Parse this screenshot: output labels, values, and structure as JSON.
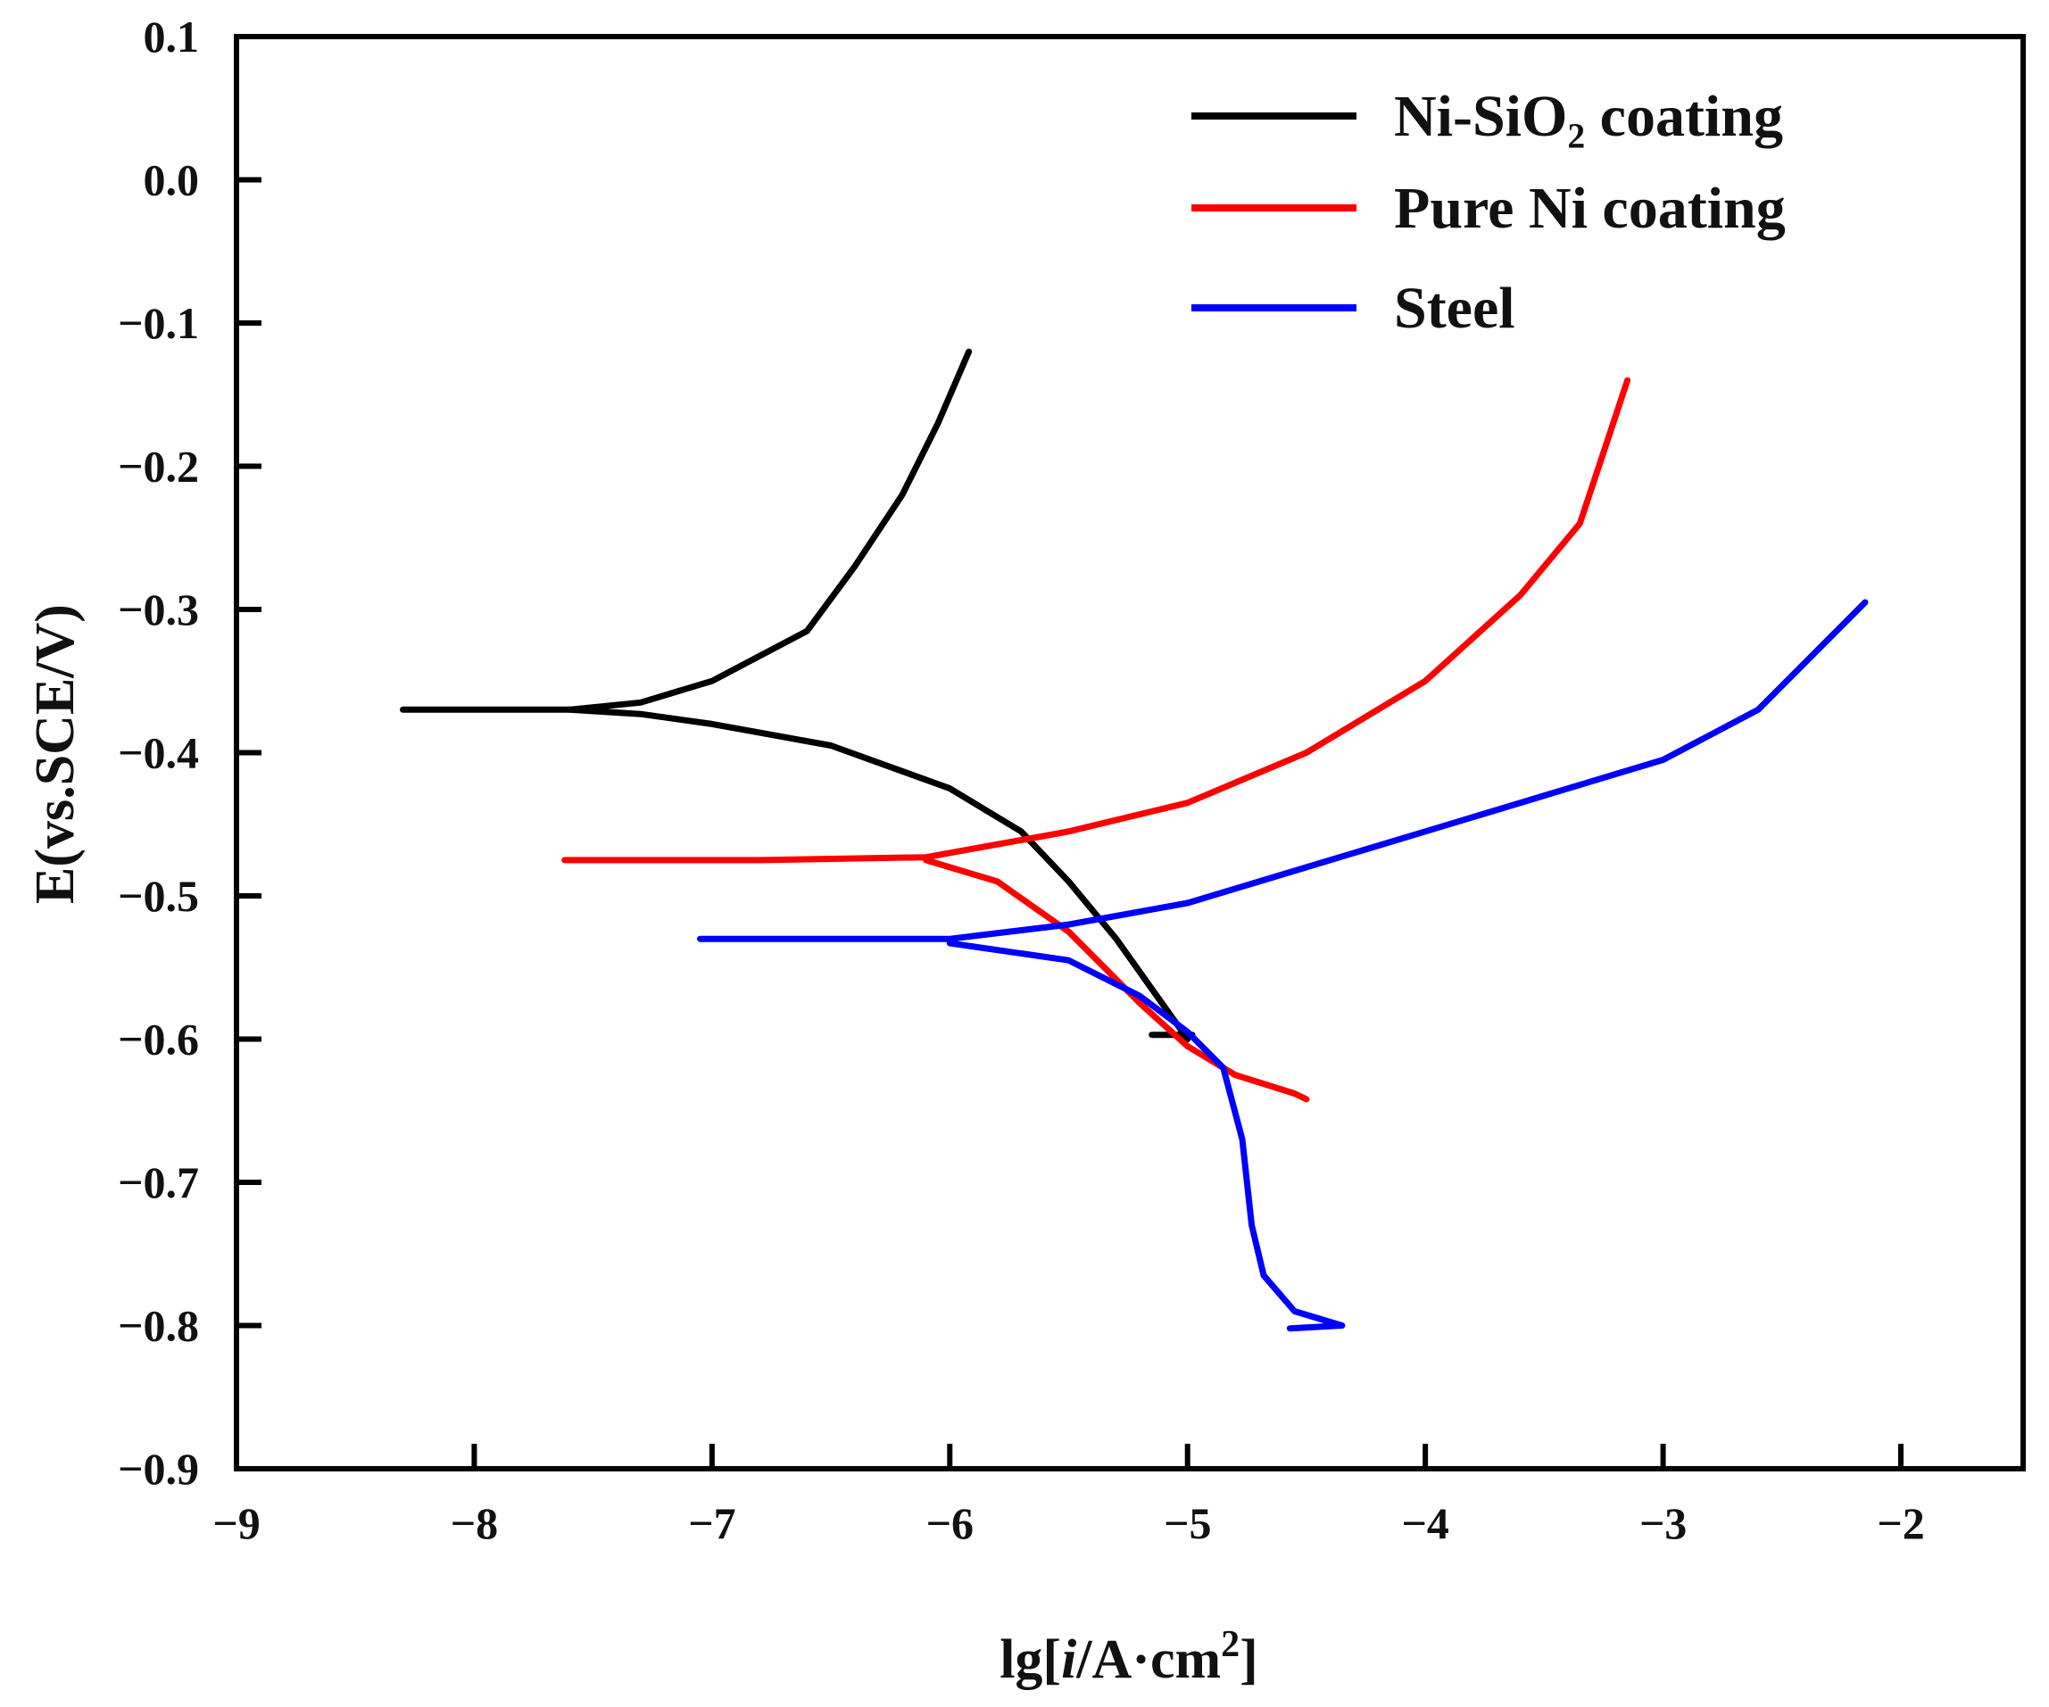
{
  "chart_data": {
    "type": "line",
    "title": "",
    "xlabel": "lg[i/A·cm2]",
    "xlabel_parts": {
      "prefix": "lg[",
      "italic": "i",
      "middle": "/A·cm",
      "sup": "2",
      "suffix": "]"
    },
    "ylabel": "E(vs.SCE/V)",
    "xlim": [
      -9,
      -1.5
    ],
    "ylim": [
      -0.9,
      0.1
    ],
    "xticks": [
      -9,
      -8,
      -7,
      -6,
      -5,
      -4,
      -3,
      -2
    ],
    "xtick_labels": [
      "−9",
      "−8",
      "−7",
      "−6",
      "−5",
      "−4",
      "−3",
      "−2"
    ],
    "yticks": [
      0.1,
      0.0,
      -0.1,
      -0.2,
      -0.3,
      -0.4,
      -0.5,
      -0.6,
      -0.7,
      -0.8,
      -0.9
    ],
    "ytick_labels": [
      "0.1",
      "0.0",
      "−0.1",
      "−0.2",
      "−0.3",
      "−0.4",
      "−0.5",
      "−0.6",
      "−0.7",
      "−0.8",
      "−0.9"
    ],
    "grid": false,
    "legend_position": "top-right",
    "series": [
      {
        "name": "Ni-SiO₂ coating",
        "color": "#000000",
        "branches": [
          [
            [
              -8.3,
              -0.37
            ],
            [
              -7.6,
              -0.37
            ],
            [
              -7.3,
              -0.365
            ],
            [
              -7.0,
              -0.35
            ],
            [
              -6.6,
              -0.315
            ],
            [
              -6.4,
              -0.27
            ],
            [
              -6.2,
              -0.22
            ],
            [
              -6.05,
              -0.17
            ],
            [
              -5.92,
              -0.12
            ]
          ],
          [
            [
              -7.6,
              -0.37
            ],
            [
              -7.3,
              -0.373
            ],
            [
              -7.0,
              -0.38
            ],
            [
              -6.5,
              -0.395
            ],
            [
              -6.0,
              -0.425
            ],
            [
              -5.7,
              -0.455
            ],
            [
              -5.5,
              -0.49
            ],
            [
              -5.3,
              -0.53
            ],
            [
              -5.15,
              -0.565
            ],
            [
              -5.0,
              -0.6
            ]
          ],
          [
            [
              -5.15,
              -0.597
            ],
            [
              -4.98,
              -0.597
            ]
          ]
        ]
      },
      {
        "name": "Pure Ni coating",
        "color": "#ff0000",
        "branches": [
          [
            [
              -7.62,
              -0.475
            ],
            [
              -6.8,
              -0.475
            ],
            [
              -6.1,
              -0.473
            ],
            [
              -5.5,
              -0.455
            ],
            [
              -5.0,
              -0.435
            ],
            [
              -4.5,
              -0.4
            ],
            [
              -4.0,
              -0.35
            ],
            [
              -3.6,
              -0.29
            ],
            [
              -3.35,
              -0.24
            ],
            [
              -3.25,
              -0.19
            ],
            [
              -3.15,
              -0.14
            ]
          ],
          [
            [
              -6.1,
              -0.475
            ],
            [
              -5.8,
              -0.49
            ],
            [
              -5.5,
              -0.525
            ],
            [
              -5.2,
              -0.575
            ],
            [
              -5.0,
              -0.605
            ],
            [
              -4.8,
              -0.625
            ],
            [
              -4.55,
              -0.638
            ],
            [
              -4.5,
              -0.642
            ]
          ]
        ]
      },
      {
        "name": "Steel",
        "color": "#0000ff",
        "branches": [
          [
            [
              -7.05,
              -0.53
            ],
            [
              -6.0,
              -0.53
            ],
            [
              -5.5,
              -0.52
            ],
            [
              -5.0,
              -0.505
            ],
            [
              -4.5,
              -0.48
            ],
            [
              -4.0,
              -0.455
            ],
            [
              -3.5,
              -0.43
            ],
            [
              -3.0,
              -0.405
            ],
            [
              -2.6,
              -0.37
            ],
            [
              -2.15,
              -0.295
            ]
          ],
          [
            [
              -6.0,
              -0.533
            ],
            [
              -5.5,
              -0.545
            ],
            [
              -5.2,
              -0.57
            ],
            [
              -5.0,
              -0.595
            ],
            [
              -4.85,
              -0.62
            ],
            [
              -4.77,
              -0.67
            ],
            [
              -4.73,
              -0.73
            ],
            [
              -4.68,
              -0.765
            ],
            [
              -4.55,
              -0.79
            ],
            [
              -4.35,
              -0.8
            ],
            [
              -4.57,
              -0.802
            ]
          ]
        ]
      }
    ]
  }
}
